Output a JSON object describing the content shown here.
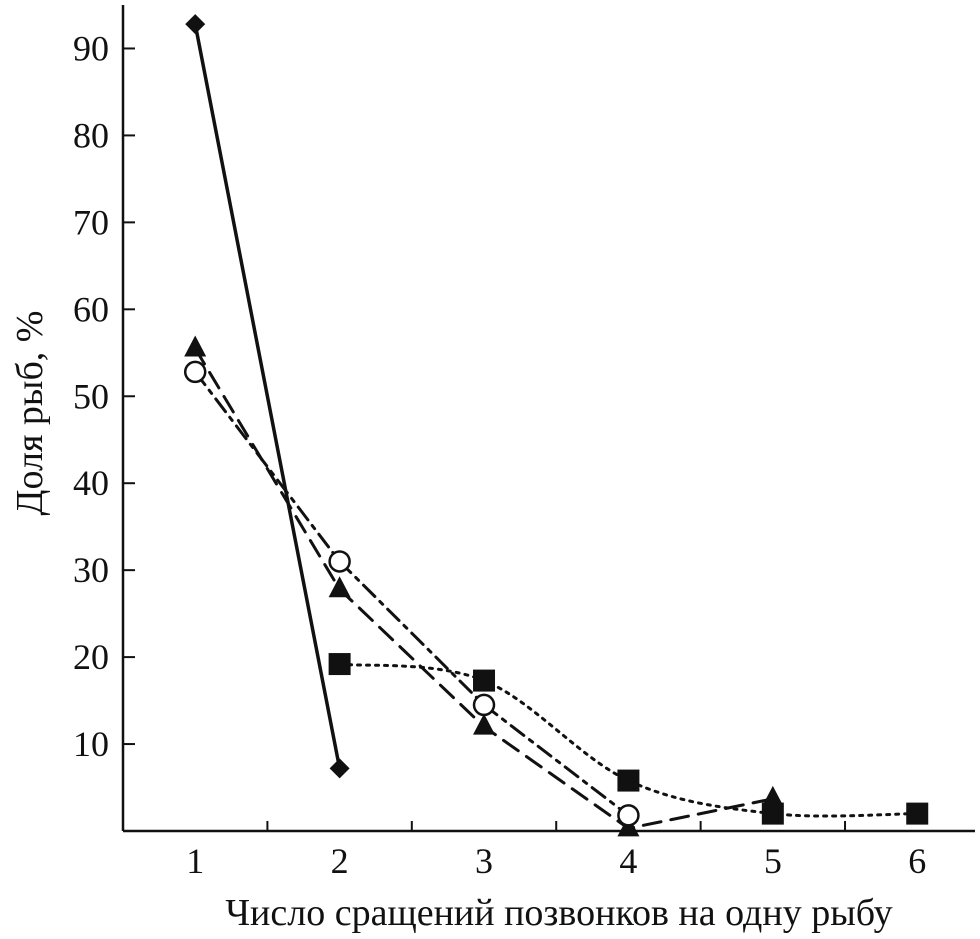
{
  "chart_data": {
    "type": "line",
    "title": "",
    "xlabel": "Число сращений позвонков на одну рыбу",
    "ylabel": "Доля рыб, %",
    "xlim": [
      0.5,
      6.4
    ],
    "ylim": [
      0,
      95
    ],
    "x_ticks": [
      "1",
      "2",
      "3",
      "4",
      "5",
      "6"
    ],
    "y_ticks": [
      "10",
      "20",
      "30",
      "40",
      "50",
      "60",
      "70",
      "80",
      "90"
    ],
    "grid": false,
    "legend": "none",
    "series": [
      {
        "marker": "diamond",
        "line_style": "solid",
        "color": "#111111",
        "x": [
          1,
          2
        ],
        "y": [
          92.8,
          7.2
        ]
      },
      {
        "marker": "triangle",
        "line_style": "dashed",
        "color": "#111111",
        "x": [
          1,
          2,
          3,
          4,
          5
        ],
        "y": [
          55.5,
          27.8,
          12.0,
          0.3,
          3.7
        ]
      },
      {
        "marker": "circle-open",
        "line_style": "dash-dot",
        "color": "#111111",
        "x": [
          1,
          2,
          3,
          4
        ],
        "y": [
          52.8,
          31.0,
          14.5,
          1.8
        ]
      },
      {
        "marker": "square",
        "line_style": "dotted",
        "color": "#111111",
        "x": [
          2,
          3,
          4,
          5,
          6
        ],
        "y": [
          19.2,
          17.3,
          5.8,
          2.0,
          2.0
        ]
      }
    ]
  }
}
